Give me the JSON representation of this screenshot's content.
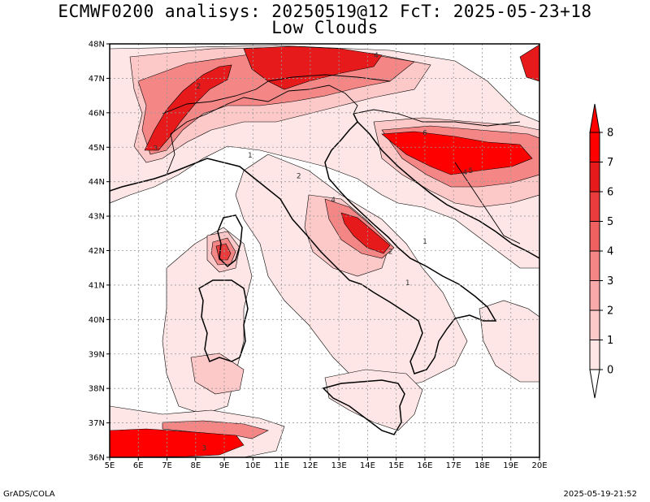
{
  "title_line1": "ECMWF0200 analisys: 20250519@12 FcT: 2025-05-23+18",
  "title_line2": "Low Clouds",
  "footer_left": "GrADS/COLA",
  "footer_right": "2025-05-19-21:52",
  "map": {
    "lon_range": [
      5,
      20
    ],
    "lat_range": [
      36,
      48
    ],
    "lon_ticks": [
      "5E",
      "6E",
      "7E",
      "8E",
      "9E",
      "10E",
      "11E",
      "12E",
      "13E",
      "14E",
      "15E",
      "16E",
      "17E",
      "18E",
      "19E",
      "20E"
    ],
    "lat_ticks": [
      "36N",
      "37N",
      "38N",
      "39N",
      "40N",
      "41N",
      "42N",
      "43N",
      "44N",
      "45N",
      "46N",
      "47N",
      "48N"
    ],
    "grid": true
  },
  "colorbar": {
    "levels": [
      "0",
      "1",
      "2",
      "3",
      "4",
      "5",
      "6",
      "7",
      "8"
    ],
    "colors": [
      "#ffffff",
      "#fee6e6",
      "#fcc8c8",
      "#f9a9a9",
      "#f48686",
      "#ef6060",
      "#ea3c3c",
      "#e61a1a",
      "#ff0000"
    ]
  },
  "contour_labels": [
    {
      "text": "1",
      "lon": 9.9,
      "lat": 44.7
    },
    {
      "text": "1",
      "lon": 16.0,
      "lat": 42.2
    },
    {
      "text": "1",
      "lon": 15.4,
      "lat": 41.0
    },
    {
      "text": "2",
      "lon": 8.1,
      "lat": 46.7
    },
    {
      "text": "2",
      "lon": 11.6,
      "lat": 44.1
    },
    {
      "text": "2",
      "lon": 14.8,
      "lat": 41.9
    },
    {
      "text": "3",
      "lon": 6.6,
      "lat": 44.9
    },
    {
      "text": "3",
      "lon": 8.3,
      "lat": 36.2
    },
    {
      "text": "4",
      "lon": 14.3,
      "lat": 47.6
    },
    {
      "text": "4",
      "lon": 12.8,
      "lat": 43.4
    },
    {
      "text": "4",
      "lon": 17.4,
      "lat": 44.2
    },
    {
      "text": "5",
      "lon": 17.6,
      "lat": 44.25
    },
    {
      "text": "6",
      "lon": 16.0,
      "lat": 45.35
    }
  ]
}
